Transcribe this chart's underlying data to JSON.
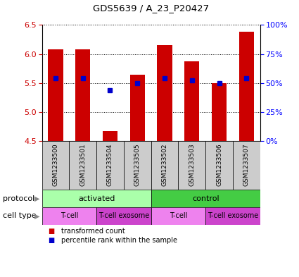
{
  "title": "GDS5639 / A_23_P20427",
  "samples": [
    "GSM1233500",
    "GSM1233501",
    "GSM1233504",
    "GSM1233505",
    "GSM1233502",
    "GSM1233503",
    "GSM1233506",
    "GSM1233507"
  ],
  "bar_values": [
    6.08,
    6.08,
    4.68,
    5.65,
    6.15,
    5.88,
    5.5,
    6.38
  ],
  "bar_bottom": 4.5,
  "percentile_values": [
    5.58,
    5.58,
    5.38,
    5.5,
    5.58,
    5.55,
    5.5,
    5.58
  ],
  "ylim": [
    4.5,
    6.5
  ],
  "yticks_left": [
    4.5,
    5.0,
    5.5,
    6.0,
    6.5
  ],
  "yticks_right": [
    0,
    25,
    50,
    75,
    100
  ],
  "ytick_labels_right": [
    "0%",
    "25%",
    "50%",
    "75%",
    "100%"
  ],
  "bar_color": "#CC0000",
  "percentile_color": "#0000CC",
  "bar_width": 0.55,
  "protocol_groups": [
    {
      "label": "activated",
      "start": 0,
      "end": 4,
      "color": "#AAFFAA"
    },
    {
      "label": "control",
      "start": 4,
      "end": 8,
      "color": "#44CC44"
    }
  ],
  "cell_type_groups": [
    {
      "label": "T-cell",
      "start": 0,
      "end": 2,
      "color": "#EE82EE"
    },
    {
      "label": "T-cell exosome",
      "start": 2,
      "end": 4,
      "color": "#CC44CC"
    },
    {
      "label": "T-cell",
      "start": 4,
      "end": 6,
      "color": "#EE82EE"
    },
    {
      "label": "T-cell exosome",
      "start": 6,
      "end": 8,
      "color": "#CC44CC"
    }
  ],
  "sample_area_color": "#CCCCCC",
  "legend_items": [
    {
      "color": "#CC0000",
      "label": "transformed count"
    },
    {
      "color": "#0000CC",
      "label": "percentile rank within the sample"
    }
  ],
  "left_label_color": "#CC0000",
  "right_label_color": "#0000FF",
  "figsize": [
    4.25,
    3.93
  ],
  "dpi": 100
}
